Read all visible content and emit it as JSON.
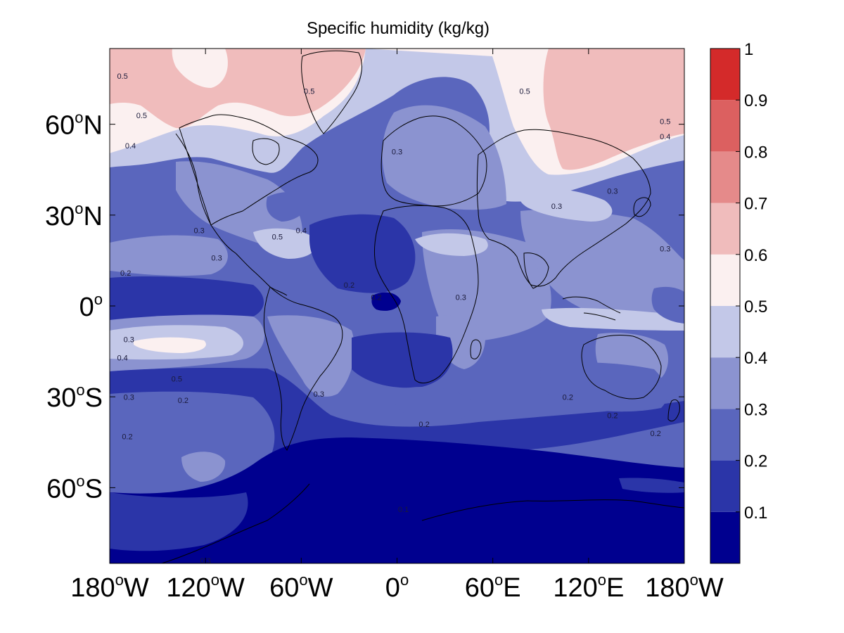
{
  "chart_data": {
    "type": "contour_map",
    "title": "Specific humidity (kg/kg)",
    "projection": "equirectangular",
    "lon_range": [
      -180,
      180
    ],
    "lat_range": [
      -85,
      85
    ],
    "x_ticks": [
      {
        "lon": -180,
        "num": "180",
        "deg": "o",
        "hemi": "W"
      },
      {
        "lon": -120,
        "num": "120",
        "deg": "o",
        "hemi": "W"
      },
      {
        "lon": -60,
        "num": "60",
        "deg": "o",
        "hemi": "W"
      },
      {
        "lon": 0,
        "num": "0",
        "deg": "o",
        "hemi": ""
      },
      {
        "lon": 60,
        "num": "60",
        "deg": "o",
        "hemi": "E"
      },
      {
        "lon": 120,
        "num": "120",
        "deg": "o",
        "hemi": "E"
      },
      {
        "lon": 180,
        "num": "180",
        "deg": "o",
        "hemi": "W"
      }
    ],
    "y_ticks": [
      {
        "lat": 60,
        "num": "60",
        "deg": "o",
        "hemi": "N"
      },
      {
        "lat": 30,
        "num": "30",
        "deg": "o",
        "hemi": "N"
      },
      {
        "lat": 0,
        "num": "0",
        "deg": "o",
        "hemi": ""
      },
      {
        "lat": -30,
        "num": "30",
        "deg": "o",
        "hemi": "S"
      },
      {
        "lat": -60,
        "num": "60",
        "deg": "o",
        "hemi": "S"
      }
    ],
    "colorbar": {
      "levels": [
        0.0,
        0.1,
        0.2,
        0.3,
        0.4,
        0.5,
        0.6,
        0.7,
        0.8,
        0.9,
        1.0
      ],
      "colors": [
        "#00008f",
        "#2b35a8",
        "#5a66bd",
        "#8b93d0",
        "#c3c8e8",
        "#fbf0f0",
        "#f0bcbc",
        "#e58a8a",
        "#dc6060",
        "#d42a2a"
      ],
      "tick_labels": [
        "0.1",
        "0.2",
        "0.3",
        "0.4",
        "0.5",
        "0.6",
        "0.7",
        "0.8",
        "0.9",
        "1"
      ]
    },
    "contour_labels": [
      {
        "lon": -172,
        "lat": 75,
        "text": "0.5"
      },
      {
        "lon": -160,
        "lat": 62,
        "text": "0.5"
      },
      {
        "lon": -167,
        "lat": 52,
        "text": "0.4"
      },
      {
        "lon": -124,
        "lat": 24,
        "text": "0.3"
      },
      {
        "lon": -113,
        "lat": 15,
        "text": "0.3"
      },
      {
        "lon": -170,
        "lat": 10,
        "text": "0.2"
      },
      {
        "lon": -75,
        "lat": 22,
        "text": "0.5"
      },
      {
        "lon": -60,
        "lat": 24,
        "text": "0.4"
      },
      {
        "lon": -55,
        "lat": 70,
        "text": "0.5"
      },
      {
        "lon": -30,
        "lat": 6,
        "text": "0.2"
      },
      {
        "lon": -13,
        "lat": 2,
        "text": "0.2"
      },
      {
        "lon": 0,
        "lat": 50,
        "text": "0.3"
      },
      {
        "lon": 40,
        "lat": 2,
        "text": "0.3"
      },
      {
        "lon": 80,
        "lat": 70,
        "text": "0.5"
      },
      {
        "lon": 100,
        "lat": 32,
        "text": "0.3"
      },
      {
        "lon": 135,
        "lat": 37,
        "text": "0.3"
      },
      {
        "lon": 168,
        "lat": 18,
        "text": "0.3"
      },
      {
        "lon": 168,
        "lat": 55,
        "text": "0.4"
      },
      {
        "lon": 168,
        "lat": 60,
        "text": "0.5"
      },
      {
        "lon": -168,
        "lat": -12,
        "text": "0.3"
      },
      {
        "lon": -172,
        "lat": -18,
        "text": "0.4"
      },
      {
        "lon": -138,
        "lat": -25,
        "text": "0.5"
      },
      {
        "lon": -168,
        "lat": -31,
        "text": "0.3"
      },
      {
        "lon": -134,
        "lat": -32,
        "text": "0.2"
      },
      {
        "lon": -169,
        "lat": -44,
        "text": "0.2"
      },
      {
        "lon": -49,
        "lat": -30,
        "text": "0.3"
      },
      {
        "lon": 17,
        "lat": -40,
        "text": "0.2"
      },
      {
        "lon": 4,
        "lat": -68,
        "text": "0.1"
      },
      {
        "lon": 107,
        "lat": -31,
        "text": "0.2"
      },
      {
        "lon": 135,
        "lat": -37,
        "text": "0.2"
      },
      {
        "lon": 162,
        "lat": -43,
        "text": "0.2"
      },
      {
        "lon": -120,
        "lat": -85,
        "text": "0.3"
      },
      {
        "lon": -145,
        "lat": -90,
        "text": "0.2"
      },
      {
        "lon": -120,
        "lat": -110,
        "text": "0.1"
      },
      {
        "lon": 148,
        "lat": -90,
        "text": "0.1"
      }
    ]
  }
}
